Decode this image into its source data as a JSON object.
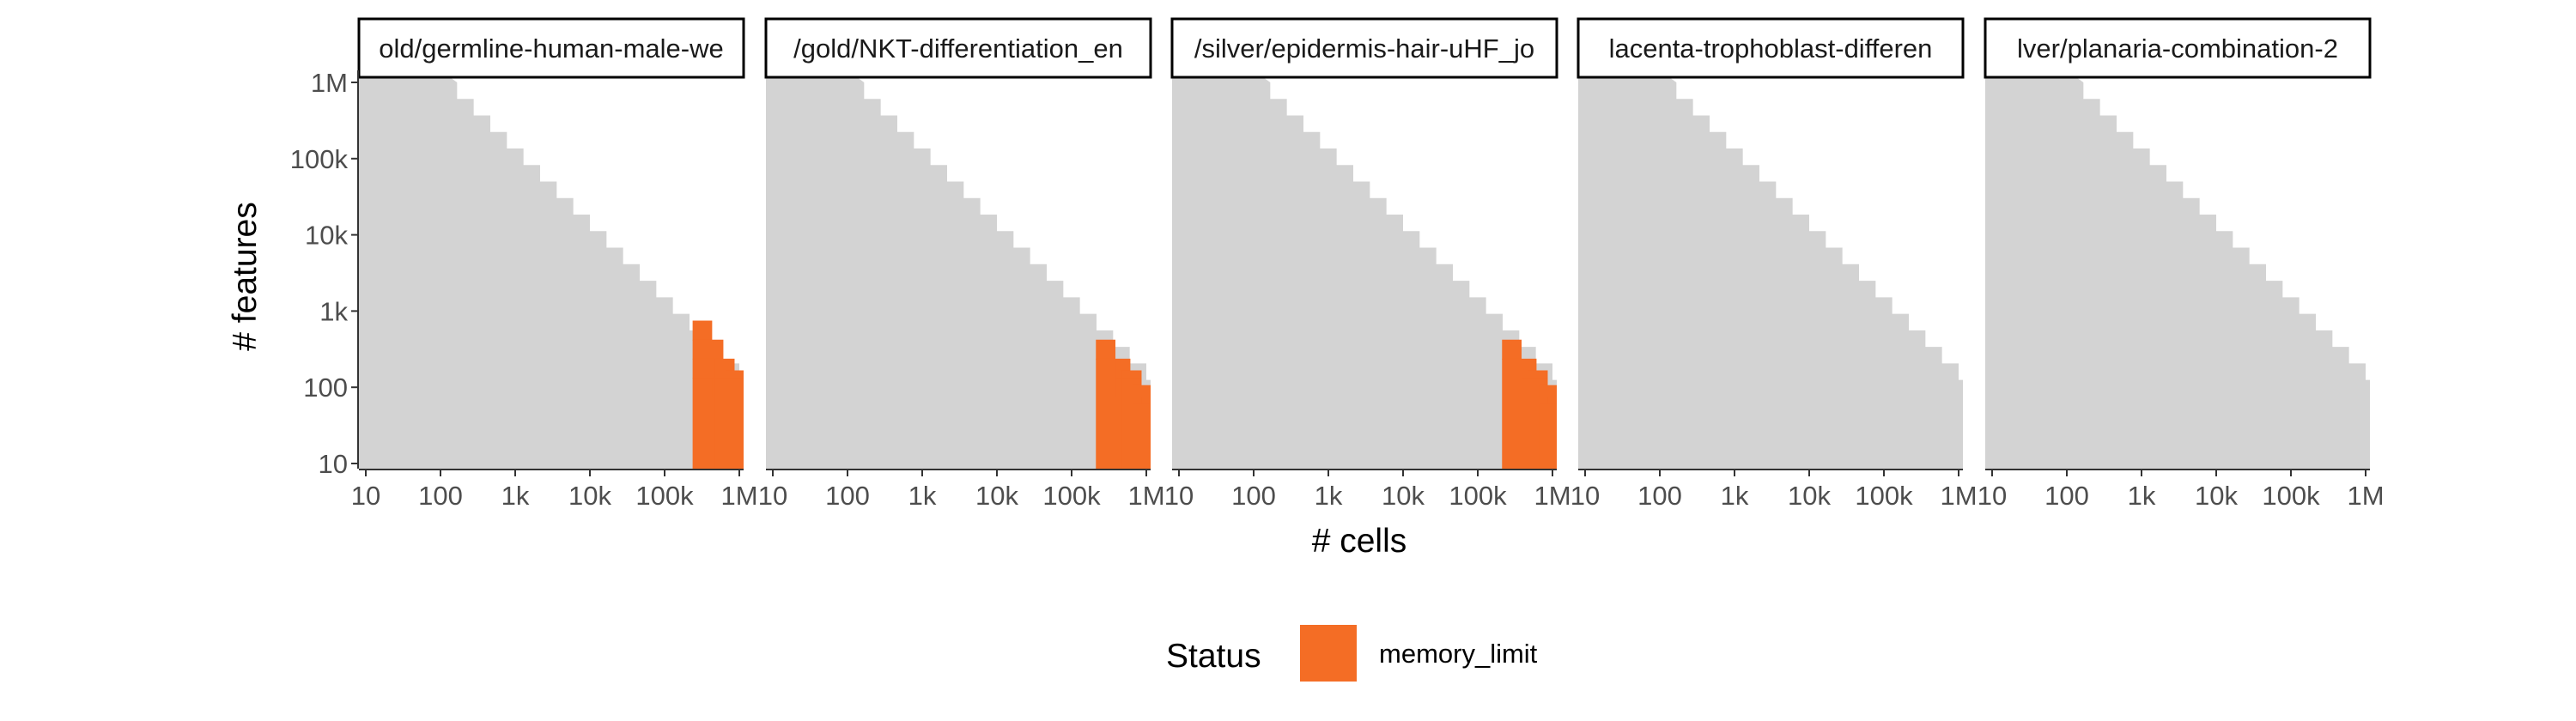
{
  "chart_data": {
    "type": "heatmap",
    "xlabel": "# cells",
    "ylabel": "# features",
    "x_scale": "log10",
    "y_scale": "log10",
    "xlim": [
      10,
      1000000
    ],
    "ylim": [
      10,
      1000000
    ],
    "x_ticks": [
      {
        "value": 10,
        "label": "10"
      },
      {
        "value": 100,
        "label": "100"
      },
      {
        "value": 1000,
        "label": "1k"
      },
      {
        "value": 10000,
        "label": "10k"
      },
      {
        "value": 100000,
        "label": "100k"
      },
      {
        "value": 1000000,
        "label": "1M"
      }
    ],
    "y_ticks": [
      {
        "value": 10,
        "label": "10"
      },
      {
        "value": 100,
        "label": "100"
      },
      {
        "value": 1000,
        "label": "1k"
      },
      {
        "value": 10000,
        "label": "10k"
      },
      {
        "value": 100000,
        "label": "100k"
      },
      {
        "value": 1000000,
        "label": "1M"
      }
    ],
    "grid": false,
    "legend": {
      "title": "Status",
      "position": "bottom",
      "entries": [
        {
          "label": "memory_limit",
          "color": "#f46d25"
        }
      ]
    },
    "colors": {
      "succeeded": "#d3d3d3",
      "memory_limit": "#f46d25"
    },
    "panels": [
      {
        "title": "old/germline-human-male-we",
        "feasible_boundary": [
          [
            10,
            1000000
          ],
          [
            100,
            1000000
          ],
          [
            1000000,
            125
          ]
        ],
        "memory_limit_cells": [
          [
            316228,
            562
          ],
          [
            316228,
            316
          ],
          [
            316228,
            178
          ],
          [
            446684,
            316
          ],
          [
            446684,
            178
          ],
          [
            446684,
            100
          ],
          [
            630957,
            178
          ],
          [
            630957,
            100
          ],
          [
            891251,
            125
          ],
          [
            891251,
            100
          ]
        ]
      },
      {
        "title": "/gold/NKT-differentiation_en",
        "feasible_boundary": [
          [
            10,
            1000000
          ],
          [
            100,
            1000000
          ],
          [
            1000000,
            125
          ]
        ],
        "memory_limit_cells": [
          [
            281838,
            316
          ],
          [
            446684,
            178
          ],
          [
            446684,
            100
          ],
          [
            630957,
            125
          ],
          [
            630957,
            100
          ],
          [
            891251,
            80
          ]
        ]
      },
      {
        "title": "/silver/epidermis-hair-uHF_jo",
        "feasible_boundary": [
          [
            10,
            1000000
          ],
          [
            100,
            1000000
          ],
          [
            1000000,
            125
          ]
        ],
        "memory_limit_cells": [
          [
            281838,
            316
          ],
          [
            446684,
            178
          ],
          [
            446684,
            100
          ],
          [
            630957,
            125
          ],
          [
            630957,
            100
          ],
          [
            891251,
            80
          ]
        ]
      },
      {
        "title": "lacenta-trophoblast-differen",
        "feasible_boundary": [
          [
            10,
            1000000
          ],
          [
            100,
            1000000
          ],
          [
            1000000,
            125
          ]
        ],
        "memory_limit_cells": []
      },
      {
        "title": "lver/planaria-combination-2",
        "feasible_boundary": [
          [
            10,
            1000000
          ],
          [
            100,
            1000000
          ],
          [
            1000000,
            125
          ]
        ],
        "memory_limit_cells": []
      }
    ]
  }
}
